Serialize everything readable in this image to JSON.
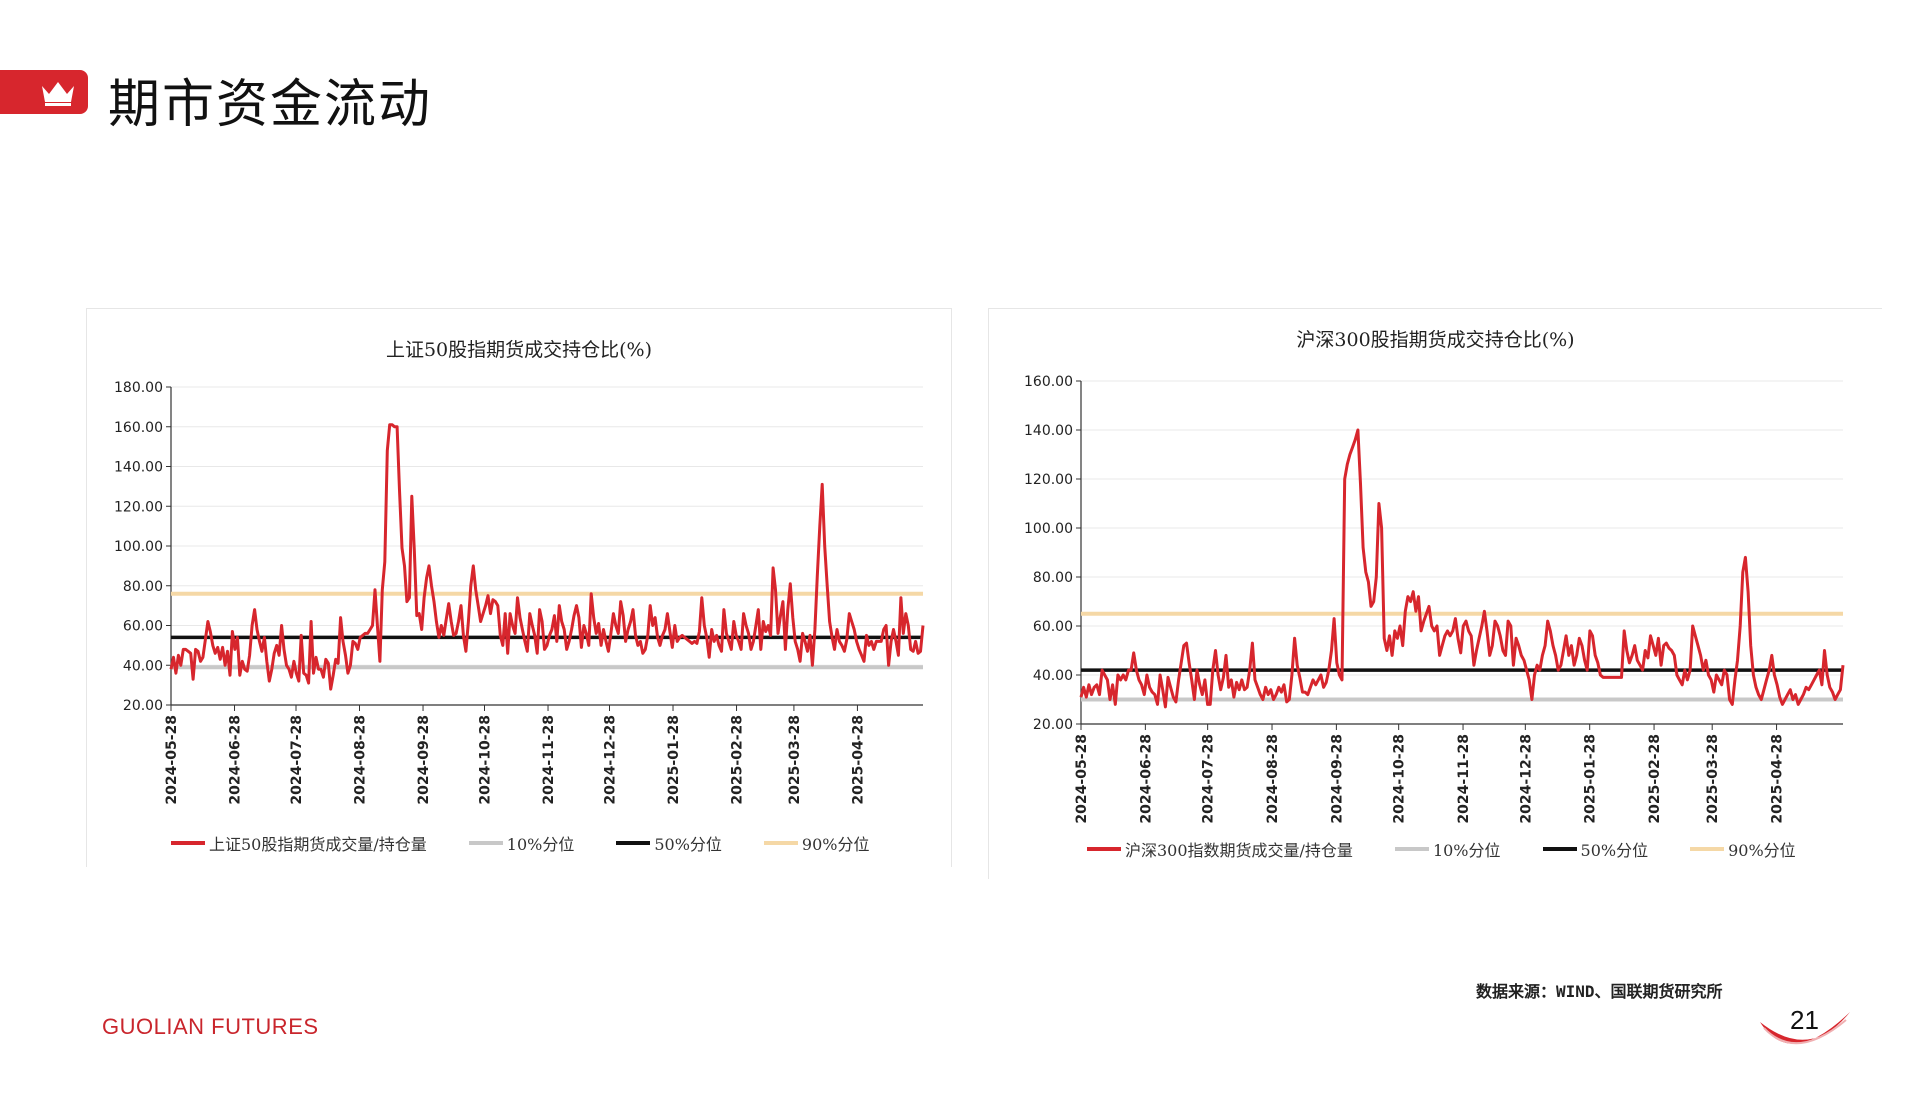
{
  "header": {
    "title": "期市资金流动",
    "icon": "crown-icon",
    "accent": "#d7262d"
  },
  "footer": {
    "source": "数据来源：WIND、国联期货研究所",
    "brand_main": "GUOLIAN",
    "brand_sub": "FUTURES",
    "page_number": "21"
  },
  "chart_data": [
    {
      "type": "line",
      "title": "上证50股指期货成交持仓比(%)",
      "ylim": [
        20,
        180
      ],
      "yticks": [
        "20.00",
        "40.00",
        "60.00",
        "80.00",
        "100.00",
        "120.00",
        "140.00",
        "160.00",
        "180.00"
      ],
      "x_start": "2024-05-28",
      "x_end": "2025-05-30",
      "xticks": [
        "2024-05-28",
        "2024-06-28",
        "2024-07-28",
        "2024-08-28",
        "2024-09-28",
        "2024-10-28",
        "2024-11-28",
        "2024-12-28",
        "2025-01-28",
        "2025-02-28",
        "2025-03-28",
        "2025-04-28"
      ],
      "grid": "horizontal",
      "legend_position": "bottom",
      "series": [
        {
          "name": "上证50股指期货成交量/持仓量",
          "color": "#d7262d",
          "values": [
            38,
            44,
            36,
            45,
            40,
            48,
            48,
            47,
            46,
            33,
            48,
            47,
            42,
            44,
            53,
            62,
            57,
            50,
            46,
            49,
            43,
            49,
            40,
            47,
            35,
            57,
            48,
            54,
            35,
            42,
            38,
            37,
            45,
            60,
            68,
            58,
            52,
            47,
            54,
            42,
            32,
            38,
            46,
            50,
            45,
            60,
            48,
            40,
            38,
            34,
            42,
            36,
            32,
            55,
            36,
            35,
            31,
            62,
            36,
            44,
            38,
            38,
            34,
            43,
            41,
            28,
            35,
            43,
            41,
            64,
            52,
            45,
            36,
            40,
            52,
            51,
            48,
            54,
            55,
            56,
            56,
            58,
            60,
            78,
            60,
            42,
            78,
            92,
            148,
            161,
            161,
            160,
            160,
            128,
            99,
            90,
            72,
            74,
            125,
            98,
            65,
            66,
            58,
            74,
            84,
            90,
            80,
            72,
            62,
            54,
            60,
            55,
            63,
            71,
            62,
            55,
            56,
            62,
            70,
            55,
            47,
            62,
            80,
            90,
            78,
            70,
            62,
            66,
            70,
            75,
            66,
            73,
            72,
            70,
            55,
            50,
            66,
            46,
            66,
            60,
            56,
            74,
            64,
            58,
            52,
            47,
            66,
            60,
            55,
            46,
            68,
            62,
            48,
            50,
            55,
            58,
            65,
            52,
            70,
            62,
            58,
            48,
            52,
            58,
            65,
            70,
            64,
            49,
            60,
            56,
            50,
            76,
            64,
            56,
            61,
            50,
            58,
            52,
            47,
            56,
            66,
            60,
            56,
            72,
            65,
            52,
            58,
            62,
            68,
            55,
            50,
            52,
            46,
            48,
            55,
            70,
            60,
            64,
            54,
            50,
            55,
            58,
            66,
            57,
            49,
            60,
            52,
            54,
            55,
            54,
            53,
            52,
            51,
            52,
            51,
            57,
            74,
            60,
            54,
            44,
            58,
            52,
            55,
            50,
            47,
            68,
            56,
            52,
            48,
            62,
            55,
            52,
            48,
            66,
            60,
            56,
            48,
            52,
            60,
            68,
            48,
            62,
            57,
            60,
            55,
            89,
            78,
            56,
            65,
            72,
            48,
            68,
            81,
            64,
            52,
            48,
            42,
            56,
            52,
            47,
            55,
            40,
            58,
            85,
            110,
            131,
            100,
            80,
            62,
            54,
            48,
            58,
            52,
            50,
            47,
            53,
            66,
            62,
            58,
            52,
            48,
            45,
            42,
            55,
            50,
            52,
            48,
            52,
            52,
            52,
            58,
            60,
            40,
            52,
            58,
            52,
            45,
            74,
            56,
            66,
            60,
            48,
            47,
            52,
            46,
            47,
            60
          ]
        },
        {
          "name": "10%分位",
          "color": "#c8c8c8",
          "values": [
            39
          ]
        },
        {
          "name": "50%分位",
          "color": "#111111",
          "values": [
            54
          ]
        },
        {
          "name": "90%分位",
          "color": "#f5d8a6",
          "values": [
            76
          ]
        }
      ]
    },
    {
      "type": "line",
      "title": "沪深300股指期货成交持仓比(%)",
      "ylim": [
        20,
        160
      ],
      "yticks": [
        "20.00",
        "40.00",
        "60.00",
        "80.00",
        "100.00",
        "120.00",
        "140.00",
        "160.00"
      ],
      "x_start": "2024-05-28",
      "x_end": "2025-05-30",
      "xticks": [
        "2024-05-28",
        "2024-06-28",
        "2024-07-28",
        "2024-08-28",
        "2024-09-28",
        "2024-10-28",
        "2024-11-28",
        "2024-12-28",
        "2025-01-28",
        "2025-02-28",
        "2025-03-28",
        "2025-04-28"
      ],
      "grid": "horizontal",
      "legend_position": "bottom",
      "series": [
        {
          "name": "沪深300指数期货成交量/持仓量",
          "color": "#d7262d",
          "values": [
            31,
            35,
            31,
            36,
            32,
            35,
            36,
            32,
            42,
            40,
            38,
            30,
            36,
            28,
            40,
            38,
            40,
            38,
            42,
            42,
            49,
            42,
            38,
            36,
            32,
            40,
            35,
            33,
            32,
            28,
            40,
            34,
            27,
            39,
            35,
            31,
            29,
            38,
            45,
            52,
            53,
            45,
            38,
            30,
            42,
            36,
            32,
            38,
            28,
            28,
            42,
            50,
            40,
            34,
            39,
            48,
            35,
            38,
            31,
            37,
            34,
            38,
            34,
            35,
            42,
            53,
            38,
            35,
            32,
            30,
            35,
            32,
            34,
            30,
            32,
            35,
            33,
            36,
            29,
            30,
            40,
            55,
            44,
            39,
            33,
            33,
            32,
            35,
            38,
            36,
            38,
            40,
            35,
            37,
            42,
            50,
            63,
            45,
            40,
            38,
            120,
            126,
            130,
            133,
            136,
            140,
            118,
            92,
            82,
            78,
            68,
            70,
            80,
            110,
            100,
            55,
            50,
            56,
            48,
            58,
            55,
            60,
            52,
            66,
            72,
            70,
            74,
            66,
            72,
            58,
            62,
            65,
            68,
            60,
            58,
            60,
            48,
            52,
            56,
            58,
            56,
            58,
            63,
            55,
            49,
            60,
            62,
            58,
            56,
            44,
            50,
            55,
            60,
            66,
            58,
            48,
            52,
            62,
            60,
            56,
            50,
            48,
            62,
            60,
            44,
            55,
            52,
            48,
            46,
            42,
            38,
            30,
            40,
            44,
            42,
            48,
            52,
            62,
            58,
            52,
            48,
            42,
            44,
            50,
            56,
            48,
            52,
            44,
            48,
            55,
            52,
            46,
            42,
            58,
            56,
            48,
            45,
            40,
            39,
            39,
            39,
            39,
            39,
            39,
            39,
            39,
            58,
            50,
            45,
            48,
            52,
            46,
            44,
            42,
            50,
            47,
            56,
            52,
            48,
            55,
            44,
            52,
            53,
            51,
            50,
            48,
            40,
            38,
            36,
            42,
            38,
            42,
            60,
            56,
            52,
            48,
            42,
            46,
            40,
            38,
            33,
            40,
            38,
            36,
            42,
            40,
            30,
            28,
            38,
            46,
            60,
            82,
            88,
            74,
            52,
            40,
            35,
            32,
            30,
            34,
            38,
            42,
            48,
            40,
            36,
            31,
            28,
            30,
            32,
            34,
            30,
            32,
            28,
            30,
            32,
            35,
            34,
            36,
            38,
            40,
            42,
            36,
            50,
            40,
            35,
            33,
            30,
            32,
            34,
            44
          ]
        },
        {
          "name": "10%分位",
          "color": "#c8c8c8",
          "values": [
            30
          ]
        },
        {
          "name": "50%分位",
          "color": "#111111",
          "values": [
            42
          ]
        },
        {
          "name": "90%分位",
          "color": "#f5d8a6",
          "values": [
            65
          ]
        }
      ]
    }
  ]
}
